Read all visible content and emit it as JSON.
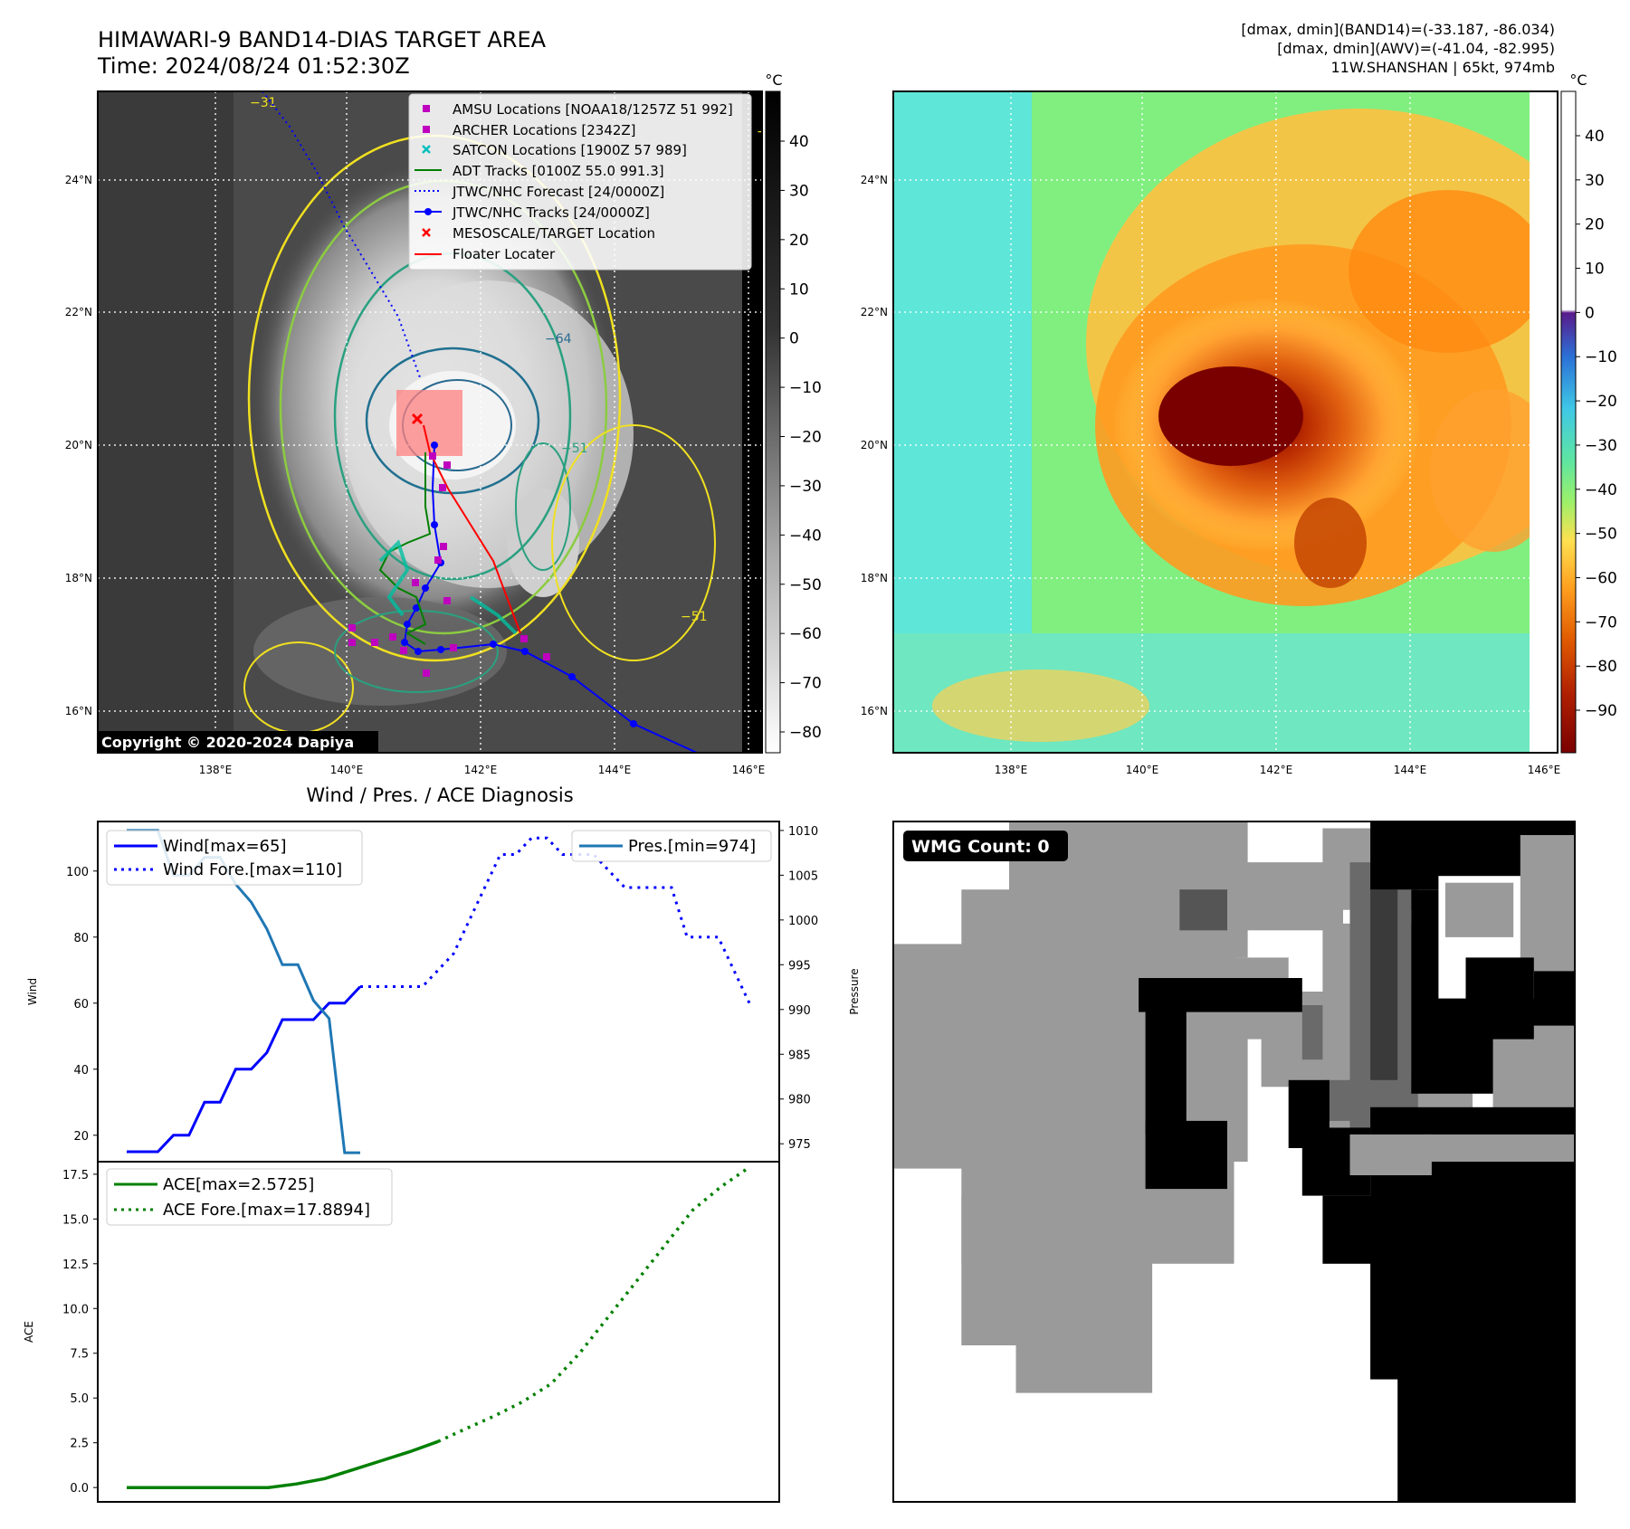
{
  "header": {
    "title_line1": "HIMAWARI-9 BAND14-DIAS TARGET AREA",
    "title_line2": "Time: 2024/08/24 01:52:30Z",
    "info_line1": "[dmax, dmin](BAND14)=(-33.187, -86.034)",
    "info_line2": "[dmax, dmin](AWV)=(-41.04, -82.995)",
    "info_line3": "11W.SHANSHAN | 65kt, 974mb"
  },
  "colors": {
    "wind": "#0000ff",
    "pressure": "#1f77b4",
    "ace": "#008000",
    "floater": "#ff0000",
    "amsu": "#bf00bf",
    "satcon": "#00bfbf"
  },
  "map_left": {
    "copyright": "Copyright © 2020-2024 Dapiya",
    "colorbar_unit": "°C",
    "colorbar_ticks": [
      "40",
      "30",
      "20",
      "10",
      "0",
      "−10",
      "−20",
      "−30",
      "−40",
      "−50",
      "−60",
      "−70",
      "−80"
    ],
    "lat_labels": [
      "24°N",
      "22°N",
      "20°N",
      "18°N",
      "16°N"
    ],
    "lon_labels": [
      "138°E",
      "140°E",
      "142°E",
      "144°E",
      "146°E"
    ],
    "contour_labels": [
      "−64",
      "−31",
      "−51",
      "−31",
      "−51"
    ],
    "legend": [
      {
        "label": "AMSU Locations [NOAA18/1257Z 51 992]",
        "icon": "square"
      },
      {
        "label": "ARCHER Locations [2342Z]",
        "icon": "square"
      },
      {
        "label": "SATCON Locations [1900Z 57 989]",
        "icon": "x-cyan"
      },
      {
        "label": "ADT Tracks [0100Z 55.0 991.3]",
        "icon": "line-green"
      },
      {
        "label": "JTWC/NHC Forecast [24/0000Z]",
        "icon": "dotted-blue"
      },
      {
        "label": "JTWC/NHC Tracks [24/0000Z]",
        "icon": "line-dot-blue"
      },
      {
        "label": "MESOSCALE/TARGET Location",
        "icon": "x-red"
      },
      {
        "label": "Floater Locater",
        "icon": "line-red"
      }
    ]
  },
  "map_right": {
    "colorbar_unit": "°C",
    "colorbar_ticks": [
      "40",
      "30",
      "20",
      "10",
      "0",
      "−10",
      "−20",
      "−30",
      "−40",
      "−50",
      "−60",
      "−70",
      "−80",
      "−90"
    ],
    "lat_labels": [
      "24°N",
      "22°N",
      "20°N",
      "18°N",
      "16°N"
    ],
    "lon_labels": [
      "138°E",
      "140°E",
      "142°E",
      "144°E",
      "146°E"
    ]
  },
  "wmg": {
    "label": "WMG Count: 0"
  },
  "chart_data": [
    {
      "type": "line",
      "title": "Wind / Pres. / ACE Diagnosis",
      "ylabel": "Wind",
      "ylabel_right": "Pressure",
      "ylim": [
        12,
        115
      ],
      "ylim_right": [
        973,
        1011
      ],
      "yticks": [
        20,
        40,
        60,
        80,
        100
      ],
      "yticks_right": [
        975,
        980,
        985,
        990,
        995,
        1000,
        1005,
        1010
      ],
      "grid": false,
      "series": [
        {
          "name": "Wind[max=65]",
          "axis": "left",
          "style": "solid",
          "values": [
            15,
            15,
            15,
            20,
            20,
            30,
            30,
            40,
            40,
            45,
            55,
            55,
            55,
            60,
            60,
            65
          ]
        },
        {
          "name": "Wind Fore.[max=110]",
          "axis": "left",
          "style": "dotted",
          "values": [
            65,
            65,
            65,
            65,
            65,
            70,
            75,
            85,
            95,
            105,
            105,
            110,
            110,
            105,
            105,
            105,
            100,
            95,
            95,
            95,
            95,
            80,
            80,
            80,
            70,
            60
          ]
        },
        {
          "name": "Pres.[min=974]",
          "axis": "right",
          "style": "solid",
          "values": [
            1010,
            1010,
            1010,
            1005,
            1005,
            1007,
            1007,
            1004,
            1002,
            999,
            995,
            995,
            991,
            989,
            974,
            974
          ]
        }
      ],
      "legend_left": "top-left",
      "legend_right": "top-right"
    },
    {
      "type": "line",
      "ylabel": "ACE",
      "ylim": [
        -0.8,
        18.2
      ],
      "yticks": [
        0.0,
        2.5,
        5.0,
        7.5,
        10.0,
        12.5,
        15.0,
        17.5
      ],
      "grid": false,
      "series": [
        {
          "name": "ACE[max=2.5725]",
          "style": "solid",
          "values": [
            0,
            0,
            0,
            0,
            0,
            0,
            0.2,
            0.5,
            1.0,
            1.5,
            2.0,
            2.5725
          ]
        },
        {
          "name": "ACE Fore.[max=17.8894]",
          "style": "dotted",
          "values": [
            2.5725,
            3.3,
            4.0,
            4.8,
            5.8,
            7.5,
            9.5,
            11.5,
            13.5,
            15.5,
            16.8,
            17.8894
          ]
        }
      ],
      "legend": "top-left"
    }
  ]
}
